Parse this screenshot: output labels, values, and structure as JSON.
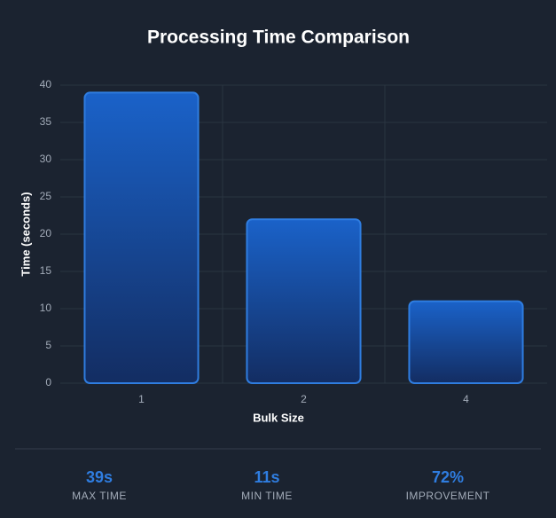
{
  "chart_data": {
    "type": "bar",
    "title": "Processing Time Comparison",
    "x_label": "Bulk Size",
    "y_label": "Time (seconds)",
    "categories": [
      "1",
      "2",
      "4"
    ],
    "values": [
      39,
      22,
      11
    ],
    "color": "#2f7de0",
    "ylim": [
      0,
      40
    ],
    "yticks": [
      0,
      5,
      10,
      15,
      20,
      25,
      30,
      35,
      40
    ],
    "grid": true
  },
  "stats": [
    {
      "value": "39s",
      "label": "MAX TIME"
    },
    {
      "value": "11s",
      "label": "MIN TIME"
    },
    {
      "value": "72%",
      "label": "IMPROVEMENT"
    }
  ]
}
